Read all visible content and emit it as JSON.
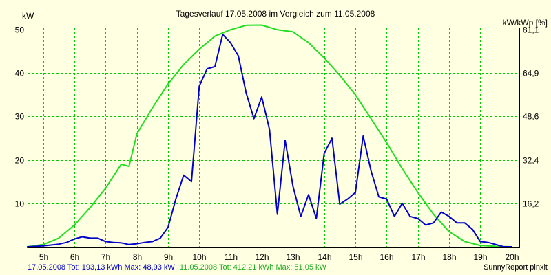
{
  "chart_data": {
    "type": "line",
    "title": "Tagesverlauf 17.05.2008 im Vergleich zum 11.05.2008",
    "ylabel_left": "kW",
    "ylabel_right": "kW/kWp [%]",
    "xlim": [
      4.5,
      20.25
    ],
    "ylim": [
      0,
      50.5
    ],
    "y_ticks": [
      10,
      20,
      30,
      40,
      50
    ],
    "right_ticks": [
      "16,2",
      "32,4",
      "48,6",
      "64,9",
      "81,1"
    ],
    "x_ticks": [
      5,
      6,
      7,
      8,
      9,
      10,
      11,
      12,
      13,
      14,
      15,
      16,
      17,
      18,
      19,
      20
    ],
    "x_tick_labels": [
      "5h",
      "6h",
      "7h",
      "8h",
      "9h",
      "10h",
      "11h",
      "12h",
      "13h",
      "14h",
      "15h",
      "16h",
      "17h",
      "18h",
      "19h",
      "20h"
    ],
    "grid": true,
    "colors": {
      "series_1": "#0000cc",
      "series_2": "#22dd22",
      "grid": "#00cc00",
      "background": "#ffffe1",
      "plot_frame": "#000000"
    },
    "series": [
      {
        "name": "17.05.2008",
        "color": "#0000cc",
        "x": [
          4.5,
          5.0,
          5.5,
          5.75,
          6.0,
          6.25,
          6.5,
          6.75,
          7.0,
          7.25,
          7.5,
          7.75,
          8.0,
          8.25,
          8.5,
          8.75,
          9.0,
          9.25,
          9.5,
          9.75,
          10.0,
          10.25,
          10.5,
          10.75,
          11.0,
          11.25,
          11.5,
          11.75,
          12.0,
          12.25,
          12.5,
          12.75,
          13.0,
          13.25,
          13.5,
          13.75,
          14.0,
          14.25,
          14.5,
          14.75,
          15.0,
          15.25,
          15.5,
          15.75,
          16.0,
          16.25,
          16.5,
          16.75,
          17.0,
          17.25,
          17.5,
          17.75,
          18.0,
          18.25,
          18.5,
          18.75,
          19.0,
          19.25,
          19.5,
          19.75,
          20.0
        ],
        "y": [
          0,
          0.2,
          0.6,
          1.0,
          1.8,
          2.3,
          2.0,
          2.0,
          1.2,
          1.0,
          0.9,
          0.5,
          0.7,
          1.0,
          1.2,
          2.0,
          4.5,
          11.0,
          16.5,
          15.0,
          37.0,
          41.0,
          41.5,
          48.9,
          47.0,
          44.0,
          35.5,
          29.5,
          34.5,
          27.0,
          7.5,
          24.5,
          14.0,
          7.0,
          12.0,
          6.5,
          21.5,
          25.0,
          9.8,
          11.0,
          12.5,
          25.5,
          17.5,
          11.5,
          11.0,
          7.0,
          10.0,
          7.0,
          6.5,
          5.0,
          5.5,
          8.0,
          7.0,
          5.5,
          5.5,
          4.0,
          1.2,
          1.0,
          0.5,
          0,
          0
        ]
      },
      {
        "name": "11.05.2008",
        "color": "#22dd22",
        "x": [
          4.5,
          5.0,
          5.5,
          6.0,
          6.5,
          7.0,
          7.5,
          7.75,
          8.0,
          8.5,
          9.0,
          9.5,
          10.0,
          10.5,
          11.0,
          11.5,
          12.0,
          12.5,
          13.0,
          13.5,
          14.0,
          14.5,
          15.0,
          15.5,
          16.0,
          16.5,
          17.0,
          17.5,
          18.0,
          18.5,
          19.0,
          19.5,
          20.0
        ],
        "y": [
          0,
          0.5,
          2.0,
          5.0,
          9.0,
          13.5,
          19.0,
          18.5,
          26.0,
          32.0,
          37.5,
          42.0,
          45.5,
          48.5,
          50.0,
          51.0,
          51.05,
          50.0,
          49.5,
          47.0,
          43.5,
          39.5,
          35.0,
          29.5,
          24.0,
          18.0,
          12.5,
          7.5,
          3.5,
          1.2,
          0.3,
          0.1,
          0
        ]
      }
    ],
    "footer": {
      "series1_text": "17.05.2008 Tot: 193,13 kWh Max: 48,93 kW",
      "series2_text": "11.05.2008 Tot: 412,21 kWh Max: 51,05 kW",
      "credit": "SunnyReport pinxit"
    }
  }
}
